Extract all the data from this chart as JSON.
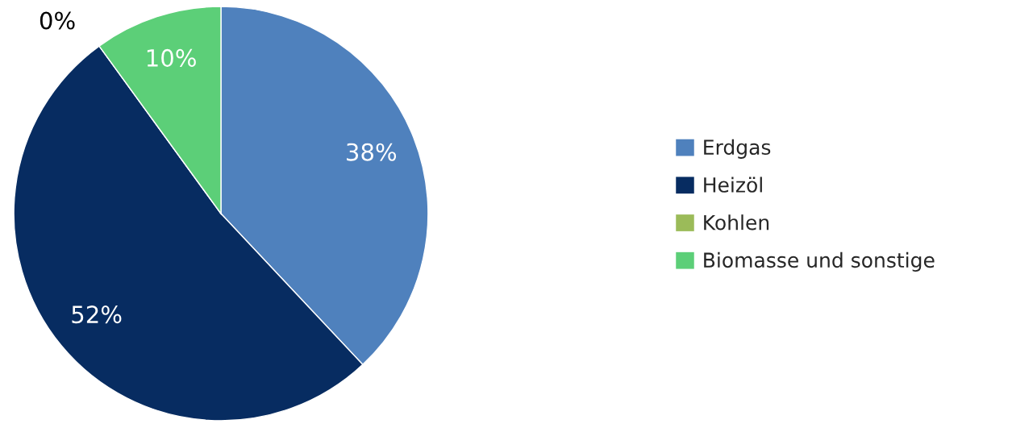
{
  "chart_data": {
    "type": "pie",
    "categories": [
      "Erdgas",
      "Heizöl",
      "Kohlen",
      "Biomasse und sonstige"
    ],
    "values": [
      38,
      52,
      0,
      10
    ],
    "colors": [
      "#4f81bd",
      "#072c61",
      "#9bbb59",
      "#5ccf78"
    ],
    "value_labels": [
      "38%",
      "52%",
      "0%",
      "10%"
    ],
    "legend": "right"
  }
}
